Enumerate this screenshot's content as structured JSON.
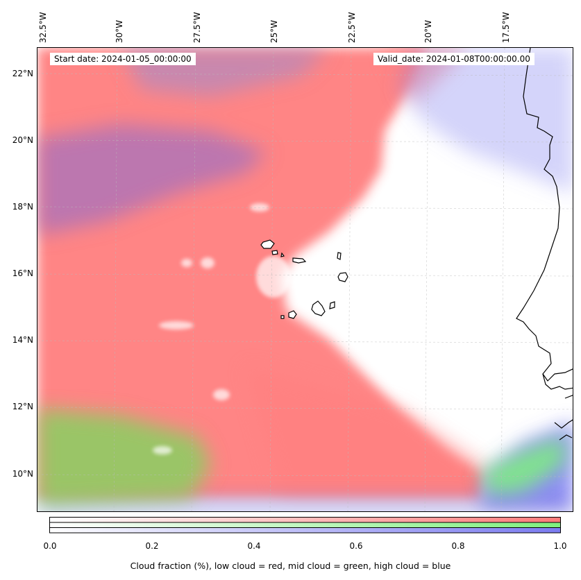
{
  "info": {
    "start_date": "Start date: 2024-01-05_00:00:00",
    "valid_date": "Valid_date: 2024-01-08T00:00:00.00"
  },
  "axes": {
    "lon_labels": [
      "32.5°W",
      "30°W",
      "27.5°W",
      "25°W",
      "22.5°W",
      "20°W",
      "17.5°W"
    ],
    "lat_labels": [
      "22°N",
      "20°N",
      "18°N",
      "16°N",
      "14°N",
      "12°N",
      "10°N"
    ]
  },
  "colorbar": {
    "ticks": [
      "0.0",
      "0.2",
      "0.4",
      "0.6",
      "0.8",
      "1.0"
    ],
    "title": "Cloud fraction (%), low cloud = red, mid cloud = green, high cloud = blue",
    "colors": {
      "low": "#ff7b7b",
      "mid": "#7ef07e",
      "high": "#7b7bf0"
    }
  },
  "map": {
    "colors": {
      "low_cloud": "#ff7f7f",
      "mid_cloud": "#8fd96a",
      "high_cloud": "#8080f0",
      "coastline": "#000000"
    }
  }
}
